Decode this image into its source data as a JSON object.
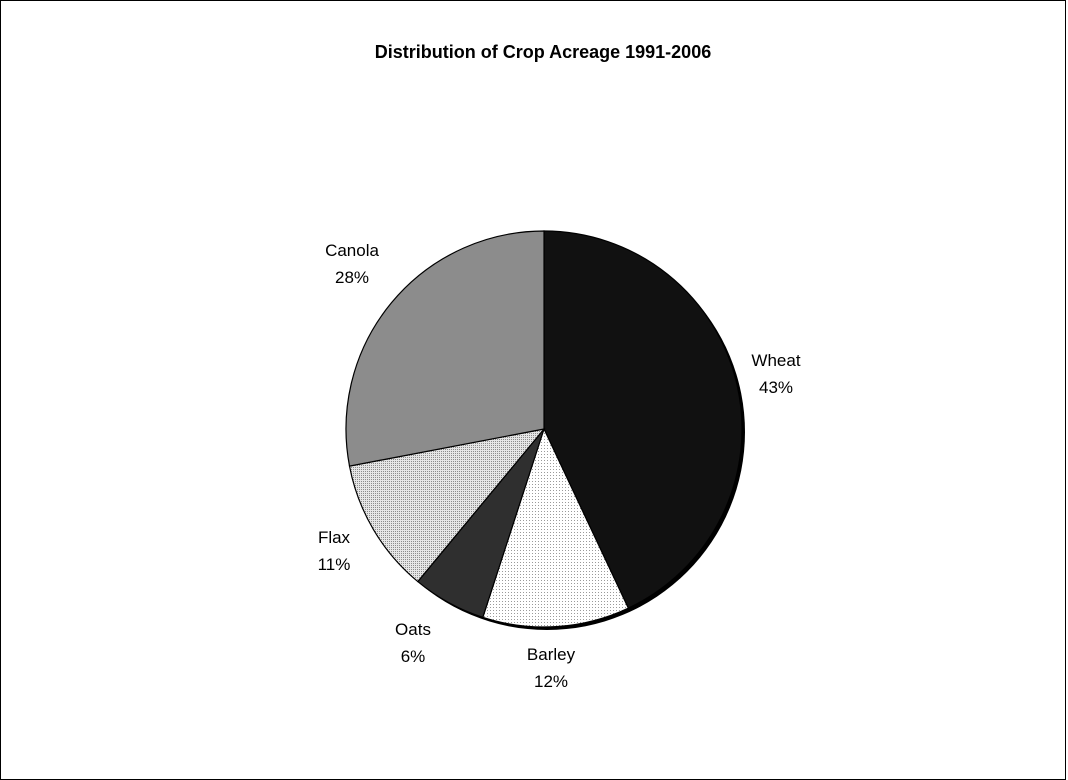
{
  "chart_data": {
    "type": "pie",
    "title": "Distribution of Crop Acreage 1991-2006",
    "slices": [
      {
        "label": "Wheat",
        "value": 43,
        "value_label": "43%",
        "color": "#0d0d0d"
      },
      {
        "label": "Barley",
        "value": 12,
        "value_label": "12%",
        "color": "#f2f2f2"
      },
      {
        "label": "Oats",
        "value": 6,
        "value_label": "6%",
        "color": "#2b2b2b"
      },
      {
        "label": "Flax",
        "value": 11,
        "value_label": "11%",
        "color": "#dcdcdc"
      },
      {
        "label": "Canola",
        "value": 28,
        "value_label": "28%",
        "color": "#8a8a8a"
      }
    ],
    "start_angle_deg": 0,
    "direction": "clockwise",
    "legend": "none"
  }
}
